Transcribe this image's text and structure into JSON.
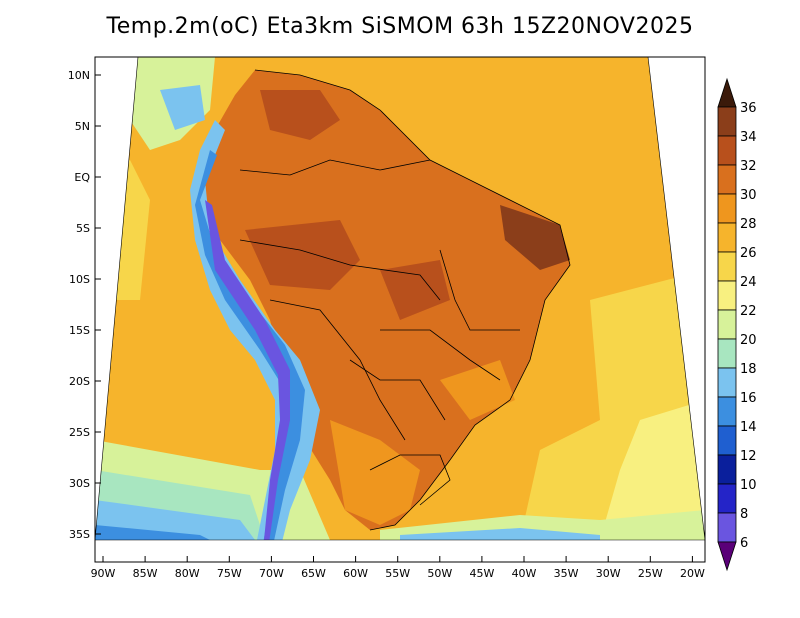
{
  "title": "Temp.2m(oC) Eta3km SiSMOM 63h 15Z20NOV2025",
  "map": {
    "lon_ticks": [
      "90W",
      "85W",
      "80W",
      "75W",
      "70W",
      "65W",
      "60W",
      "55W",
      "50W",
      "45W",
      "40W",
      "35W",
      "30W",
      "25W",
      "20W"
    ],
    "lat_ticks": [
      "10N",
      "5N",
      "EQ",
      "5S",
      "10S",
      "15S",
      "20S",
      "25S",
      "30S",
      "35S"
    ]
  },
  "colorbar": {
    "labels": [
      "36",
      "34",
      "32",
      "30",
      "28",
      "26",
      "24",
      "22",
      "20",
      "18",
      "16",
      "14",
      "12",
      "10",
      "8",
      "6"
    ],
    "colors": [
      "#5a2a12",
      "#8b3e1a",
      "#b8501c",
      "#d9701e",
      "#ef961e",
      "#f6b42c",
      "#f7d64a",
      "#f8f080",
      "#d7f29a",
      "#a8e6c0",
      "#7bc3ef",
      "#3c8fe0",
      "#1f5fd0",
      "#0a1f9c",
      "#2424c8",
      "#6a55e0",
      "#a53ad0",
      "#7a0aa0"
    ],
    "max_arrow_color": "#3b1a0a",
    "min_arrow_color": "#5a0078"
  }
}
